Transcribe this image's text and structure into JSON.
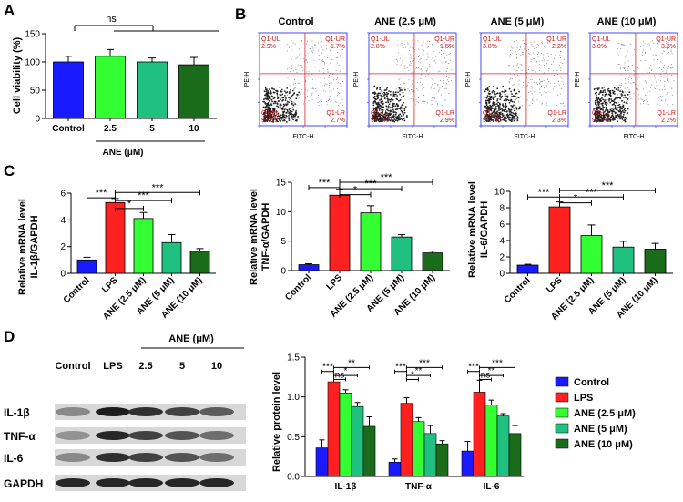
{
  "panels": {
    "A": "A",
    "B": "B",
    "C": "C",
    "D": "D"
  },
  "colors": {
    "control": "#1a1aff",
    "lps": "#ff2020",
    "ane_2_5": "#33ff33",
    "ane_5": "#20c080",
    "ane_10": "#1a6b1a"
  },
  "panelA": {
    "ylabel": "Cell viability (%)",
    "xlabel": "ANE (μM)",
    "sig": "ns"
  },
  "panelB": {
    "titles": [
      "Control",
      "ANE (2.5 μM)",
      "ANE (5 μM)",
      "ANE (10 μM)"
    ],
    "xaxis": "FITC-H",
    "yaxis": "PE-H",
    "plots": [
      {
        "UL": "2.9%",
        "UR": "1.7%",
        "LL": "92.8%",
        "LR": "2.7%"
      },
      {
        "UL": "2.8%",
        "UR": "1.5%",
        "LL": "93.1%",
        "LR": "2.9%"
      },
      {
        "UL": "3.8%",
        "UR": "2.2%",
        "LL": "91.7%",
        "LR": "2.3%"
      },
      {
        "UL": "3.0%",
        "UR": "3.3%",
        "LL": "91.5%",
        "LR": "2.2%"
      }
    ]
  },
  "panelC": {
    "ylabel_main": "Relative mRNA level",
    "sig": [
      "***",
      "*",
      "***",
      "***"
    ]
  },
  "panelD": {
    "blot_header": "ANE  (μM)",
    "lanes": [
      "Control",
      "LPS",
      "2.5",
      "5",
      "10"
    ],
    "rows": [
      "IL-1β",
      "TNF-α",
      "IL-6",
      "GAPDH"
    ],
    "ylabel": "Relative protein level",
    "legend": [
      "Control",
      "LPS",
      "ANE (2.5 μM)",
      "ANE (5 μM)",
      "ANE (10 μM)"
    ]
  },
  "chart_data": [
    {
      "type": "bar",
      "categories": [
        "Control",
        "2.5",
        "5",
        "10"
      ],
      "values": [
        100,
        110,
        100,
        95
      ],
      "errors": [
        10,
        12,
        7,
        13
      ],
      "xlabel": "ANE (μM)",
      "ylabel": "Cell viability (%)",
      "ylim": [
        0,
        150
      ],
      "yticks": [
        0,
        50,
        100,
        150
      ],
      "significance": [
        "ns"
      ]
    },
    {
      "type": "bar",
      "categories": [
        "Control",
        "LPS",
        "ANE (2.5 μM)",
        "ANE (5 μM)",
        "ANE (10 μM)"
      ],
      "values": [
        1.0,
        5.3,
        4.1,
        2.3,
        1.65
      ],
      "errors": [
        0.2,
        0.3,
        0.45,
        0.6,
        0.2
      ],
      "ylabel": "Relative mRNA level IL-1β/GAPDH",
      "ylim": [
        0,
        6
      ],
      "yticks": [
        0,
        2,
        4,
        6
      ],
      "significance": [
        "***",
        "*",
        "***",
        "***"
      ]
    },
    {
      "type": "bar",
      "categories": [
        "Control",
        "LPS",
        "ANE (2.5 μM)",
        "ANE (5 μM)",
        "ANE (10 μM)"
      ],
      "values": [
        1.0,
        12.8,
        9.8,
        5.7,
        3.0
      ],
      "errors": [
        0.15,
        1.0,
        1.2,
        0.4,
        0.3
      ],
      "ylabel": "Relative mRNA level TNF-α/GAPDH",
      "ylim": [
        0,
        15
      ],
      "yticks": [
        0,
        5,
        10,
        15
      ],
      "significance": [
        "***",
        "*",
        "***",
        "***"
      ]
    },
    {
      "type": "bar",
      "categories": [
        "Control",
        "LPS",
        "ANE (2.5 μM)",
        "ANE (5 μM)",
        "ANE (10 μM)"
      ],
      "values": [
        1.0,
        8.1,
        4.6,
        3.2,
        2.95
      ],
      "errors": [
        0.1,
        0.6,
        1.3,
        0.7,
        0.7
      ],
      "ylabel": "Relative mRNA level IL-6/GAPDH",
      "ylim": [
        0,
        10
      ],
      "yticks": [
        0,
        2,
        4,
        6,
        8,
        10
      ],
      "significance": [
        "***",
        "*",
        "***",
        "***"
      ]
    },
    {
      "type": "bar",
      "categories": [
        "IL-1β",
        "TNF-α",
        "IL-6"
      ],
      "series": [
        {
          "name": "Control",
          "values": [
            0.36,
            0.18,
            0.32
          ],
          "errors": [
            0.1,
            0.04,
            0.12
          ]
        },
        {
          "name": "LPS",
          "values": [
            1.19,
            0.92,
            1.06
          ],
          "errors": [
            0.1,
            0.07,
            0.15
          ]
        },
        {
          "name": "ANE (2.5 μM)",
          "values": [
            1.05,
            0.69,
            0.9
          ],
          "errors": [
            0.04,
            0.05,
            0.06
          ]
        },
        {
          "name": "ANE (5 μM)",
          "values": [
            0.88,
            0.54,
            0.76
          ],
          "errors": [
            0.05,
            0.1,
            0.03
          ]
        },
        {
          "name": "ANE (10 μM)",
          "values": [
            0.63,
            0.41,
            0.54
          ],
          "errors": [
            0.12,
            0.04,
            0.1
          ]
        }
      ],
      "ylabel": "Relative protein level",
      "ylim": [
        0,
        1.5
      ],
      "yticks": [
        0.0,
        0.5,
        1.0,
        1.5
      ],
      "significance": [
        "***",
        "ns",
        "*",
        "**",
        "***",
        "*",
        "**",
        "***",
        "***",
        "ns",
        "**",
        "***"
      ],
      "legend": "right"
    }
  ]
}
